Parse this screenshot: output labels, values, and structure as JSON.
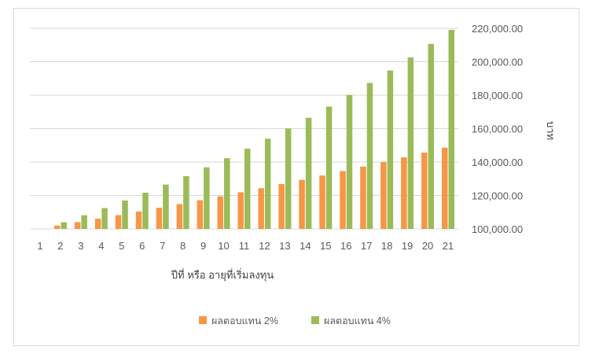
{
  "chart_data": {
    "type": "bar",
    "categories": [
      "1",
      "2",
      "3",
      "4",
      "5",
      "6",
      "7",
      "8",
      "9",
      "10",
      "11",
      "12",
      "13",
      "14",
      "15",
      "16",
      "17",
      "18",
      "19",
      "20",
      "21"
    ],
    "series": [
      {
        "name": "ผลตอบแทน 2%",
        "color": "#f79646",
        "values": [
          100000,
          102000,
          104040,
          106121,
          108243,
          110408,
          112616,
          114869,
          117166,
          119509,
          121899,
          124337,
          126824,
          129361,
          131948,
          134587,
          137279,
          140024,
          142825,
          145681,
          148595
        ]
      },
      {
        "name": "ผลตอบแทน 4%",
        "color": "#9bbb59",
        "values": [
          100000,
          104000,
          108160,
          112486,
          116986,
          121665,
          126532,
          131593,
          136857,
          142331,
          148024,
          153945,
          160103,
          166507,
          173168,
          180094,
          187298,
          194790,
          202582,
          210685,
          219112
        ]
      }
    ],
    "xlabel": "ปีที่ หรือ อายุที่เริ่มลงทุน",
    "ylabel": "บาท",
    "ylim": [
      100000,
      220000
    ],
    "yticks": [
      "220,000.00",
      "200,000.00",
      "180,000.00",
      "160,000.00",
      "140,000.00",
      "120,000.00",
      "100,000.00"
    ],
    "ytick_values": [
      220000,
      200000,
      180000,
      160000,
      140000,
      120000,
      100000
    ],
    "y_axis_side": "right",
    "grid": true,
    "legend_position": "bottom"
  }
}
